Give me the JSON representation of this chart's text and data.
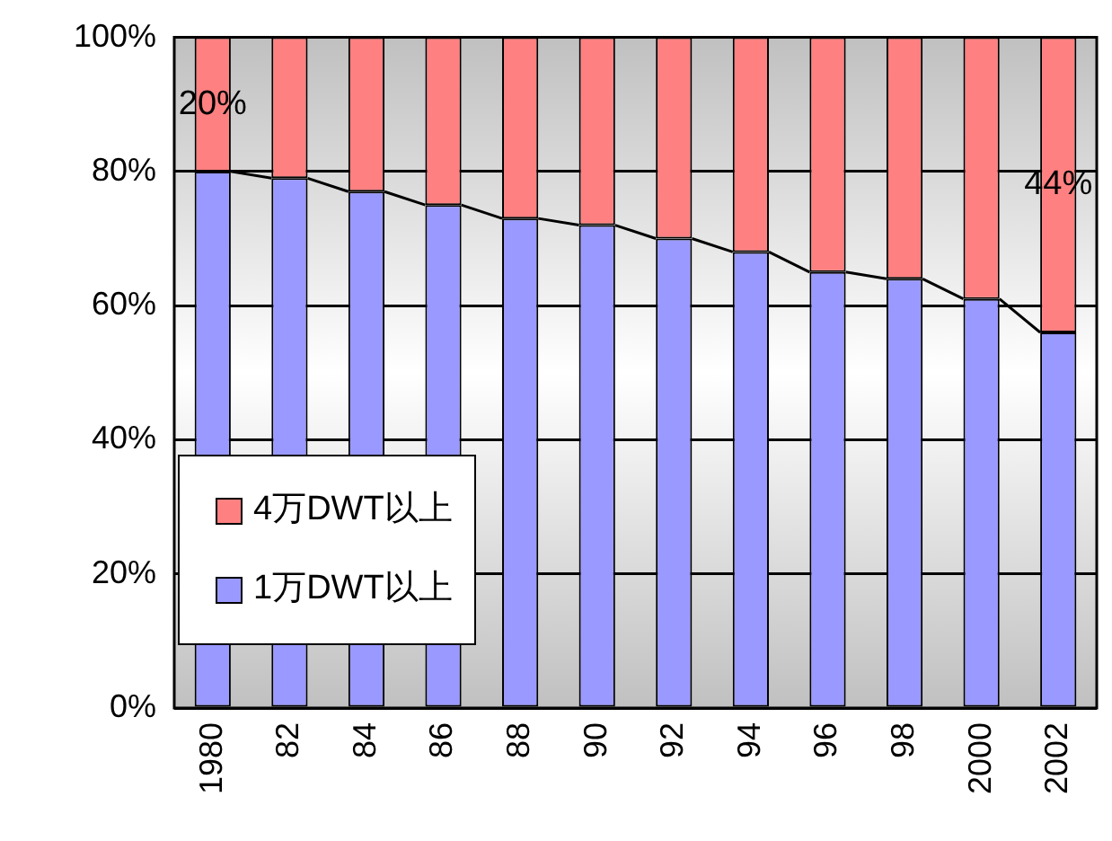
{
  "chart_data": {
    "type": "bar",
    "stacked": true,
    "categories": [
      "1980",
      "82",
      "84",
      "86",
      "88",
      "90",
      "92",
      "94",
      "96",
      "98",
      "2000",
      "2002"
    ],
    "series": [
      {
        "name": "1万DWT以上",
        "color": "#9999ff",
        "values": [
          80,
          79,
          77,
          75,
          73,
          72,
          70,
          68,
          65,
          64,
          61,
          56
        ]
      },
      {
        "name": "4万DWT以上",
        "color": "#ff8080",
        "values": [
          20,
          21,
          23,
          25,
          27,
          28,
          30,
          32,
          35,
          36,
          39,
          44
        ],
        "value_labels": [
          "20%",
          null,
          null,
          null,
          null,
          null,
          null,
          null,
          null,
          null,
          null,
          "44%"
        ]
      }
    ],
    "ylim": [
      0,
      100
    ],
    "yticks": [
      {
        "value": 0,
        "label": "0%"
      },
      {
        "value": 20,
        "label": "20%"
      },
      {
        "value": 40,
        "label": "40%"
      },
      {
        "value": 60,
        "label": "60%"
      },
      {
        "value": 80,
        "label": "80%"
      },
      {
        "value": 100,
        "label": "100%"
      }
    ],
    "grid": "y",
    "legend": "bottom left"
  }
}
